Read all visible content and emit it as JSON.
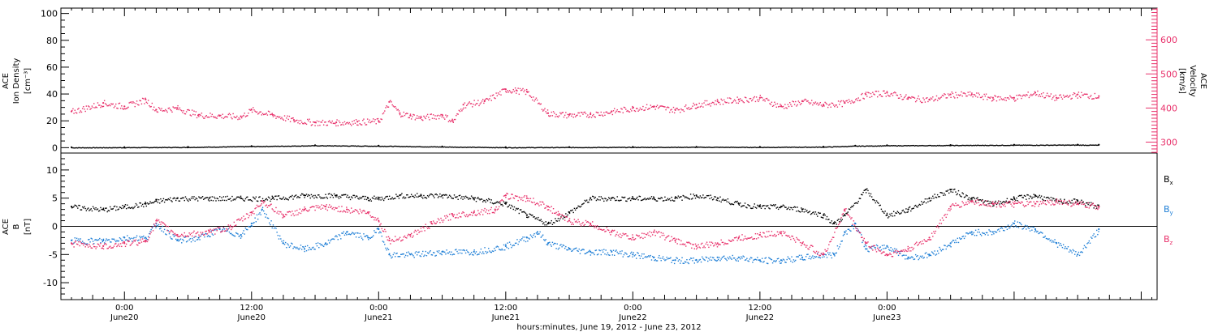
{
  "chart_data": [
    {
      "type": "scatter",
      "panel": "density-velocity",
      "ylabel_left": [
        "ACE",
        "Ion Density",
        "[cm⁻³]"
      ],
      "ylabel_right": [
        "ACE",
        "Velocity",
        "[km/s]"
      ],
      "ylim_left": [
        -4,
        104
      ],
      "ylim_right": [
        268,
        693
      ],
      "yticks_left": [
        "0",
        "20",
        "40",
        "60",
        "80",
        "100"
      ],
      "yticks_right": [
        "300",
        "400",
        "500",
        "600"
      ],
      "series": [
        {
          "axis": "left",
          "x": [
            -5,
            0,
            6,
            12,
            18,
            24,
            30,
            36,
            42,
            48,
            54,
            60,
            66,
            69,
            72,
            78,
            84,
            90,
            92
          ],
          "values": [
            0.3,
            0.4,
            0.6,
            1.2,
            1.8,
            1.5,
            0.9,
            0.4,
            0.5,
            0.6,
            0.7,
            0.6,
            0.8,
            1.5,
            1.8,
            2.0,
            2.2,
            2.3,
            2.2
          ]
        },
        {
          "axis": "right",
          "x": [
            -5,
            -2,
            0,
            2,
            3,
            5,
            7,
            9,
            11,
            12,
            14,
            16,
            18,
            20,
            22,
            24,
            25,
            26,
            27,
            28,
            30,
            31,
            32,
            34,
            36,
            37,
            38,
            40,
            42,
            44,
            46,
            48,
            50,
            52,
            54,
            56,
            58,
            60,
            62,
            64,
            66,
            68,
            70,
            72,
            74,
            76,
            78,
            80,
            82,
            84,
            86,
            88,
            90,
            92
          ],
          "values": [
            390,
            415,
            405,
            425,
            395,
            400,
            380,
            378,
            375,
            395,
            380,
            365,
            358,
            358,
            360,
            362,
            418,
            385,
            378,
            372,
            380,
            362,
            410,
            420,
            455,
            452,
            448,
            385,
            380,
            382,
            390,
            400,
            405,
            395,
            410,
            420,
            425,
            430,
            405,
            420,
            410,
            415,
            440,
            445,
            430,
            425,
            440,
            440,
            430,
            430,
            445,
            430,
            440,
            435
          ]
        }
      ]
    },
    {
      "type": "scatter",
      "panel": "magnetic-field",
      "ylabel": [
        "ACE",
        "B",
        "[nT]"
      ],
      "ylim": [
        -13,
        13
      ],
      "yticks": [
        "-10",
        "-5",
        "0",
        "5",
        "10"
      ],
      "series": [
        {
          "name": "Bx",
          "x": [
            -5,
            -2,
            0,
            2,
            3,
            5,
            8,
            11,
            14,
            17,
            20,
            23,
            24,
            26,
            28,
            30,
            33,
            36,
            38,
            40,
            42,
            44,
            46,
            48,
            50,
            52,
            54,
            56,
            58,
            60,
            62,
            64,
            66,
            67,
            68,
            70,
            72,
            74,
            76,
            78,
            80,
            82,
            84,
            86,
            88,
            90,
            92
          ],
          "values": [
            3.5,
            3.0,
            3.5,
            4.0,
            4.5,
            5.0,
            5.0,
            5.0,
            5.0,
            5.5,
            5.5,
            5.0,
            5.0,
            5.5,
            5.5,
            5.5,
            5.0,
            4.0,
            2.0,
            0.5,
            2.5,
            5.0,
            5.0,
            5.0,
            5.0,
            5.0,
            5.5,
            5.0,
            4.0,
            3.5,
            3.5,
            3.0,
            2.0,
            0.5,
            2.0,
            6.5,
            2.0,
            3.0,
            5.0,
            6.5,
            5.0,
            4.0,
            5.0,
            5.5,
            4.5,
            4.5,
            3.5
          ]
        },
        {
          "name": "By",
          "x": [
            -5,
            -2,
            0,
            2,
            3,
            5,
            7,
            9,
            11,
            12,
            13,
            15,
            17,
            19,
            21,
            23,
            24,
            25,
            27,
            30,
            33,
            36,
            38,
            39,
            40,
            42,
            44,
            46,
            48,
            50,
            52,
            54,
            56,
            58,
            60,
            62,
            64,
            66,
            67,
            68,
            69,
            70,
            72,
            74,
            76,
            78,
            80,
            82,
            84,
            86,
            88,
            90,
            92
          ],
          "values": [
            -2.5,
            -2.5,
            -2.0,
            -2.0,
            0.5,
            -2.5,
            -2.0,
            -0.5,
            -1.5,
            0.5,
            3.0,
            -3.0,
            -4.0,
            -3.0,
            -1.0,
            -2.0,
            -0.5,
            -5.0,
            -5.0,
            -4.5,
            -4.5,
            -3.5,
            -2.0,
            -1.0,
            -3.0,
            -4.0,
            -4.5,
            -4.5,
            -5.0,
            -5.5,
            -6.0,
            -6.0,
            -5.5,
            -5.5,
            -6.0,
            -6.0,
            -5.5,
            -5.0,
            -5.0,
            -1.0,
            0.5,
            -4.0,
            -3.5,
            -5.5,
            -5.0,
            -3.0,
            -1.0,
            -1.0,
            0.5,
            -0.5,
            -3.0,
            -5.0,
            -0.5
          ]
        },
        {
          "name": "Bz",
          "x": [
            -5,
            -2,
            0,
            2,
            3,
            5,
            8,
            10,
            12,
            13,
            15,
            17,
            19,
            21,
            23,
            24,
            25,
            27,
            29,
            31,
            33,
            35,
            36,
            38,
            40,
            41,
            42,
            44,
            46,
            48,
            50,
            52,
            54,
            56,
            58,
            60,
            62,
            64,
            66,
            68,
            70,
            72,
            74,
            76,
            78,
            80,
            82,
            84,
            86,
            88,
            90,
            92
          ],
          "values": [
            -3.0,
            -3.5,
            -3.0,
            -2.5,
            1.0,
            -1.5,
            -1.0,
            0.0,
            2.5,
            4.5,
            2.0,
            3.0,
            3.5,
            3.0,
            2.5,
            1.0,
            -2.5,
            -1.5,
            0.5,
            2.0,
            2.5,
            3.0,
            5.5,
            5.0,
            3.5,
            2.0,
            1.0,
            0.5,
            -1.0,
            -2.0,
            -1.0,
            -2.5,
            -3.5,
            -3.0,
            -2.0,
            -1.5,
            -1.0,
            -3.0,
            -5.0,
            3.0,
            -3.0,
            -5.0,
            -4.0,
            -2.0,
            3.5,
            4.5,
            4.0,
            4.0,
            4.0,
            4.5,
            4.0,
            3.5
          ]
        }
      ]
    }
  ],
  "legend": {
    "bx": {
      "base": "B",
      "sub": "x",
      "color": "#000000"
    },
    "by": {
      "base": "B",
      "sub": "y",
      "color": "#1f7fd6"
    },
    "bz": {
      "base": "B",
      "sub": "z",
      "color": "#e8306a"
    }
  },
  "x_axis": {
    "range_hours": [
      -6,
      97.5
    ],
    "tick_top": [
      "0:00",
      "12:00",
      "0:00",
      "12:00",
      "0:00",
      "12:00",
      "0:00"
    ],
    "tick_bottom": [
      "June20",
      "June20",
      "June21",
      "June21",
      "June22",
      "June22",
      "June23"
    ],
    "tick_hours": [
      0,
      12,
      24,
      36,
      48,
      60,
      72
    ],
    "title": "hours:minutes, June 19, 2012 - June 23, 2012"
  },
  "colors": {
    "density": "#000000",
    "velocity": "#e8306a",
    "bx": "#000000",
    "by": "#1f7fd6",
    "bz": "#e8306a"
  }
}
